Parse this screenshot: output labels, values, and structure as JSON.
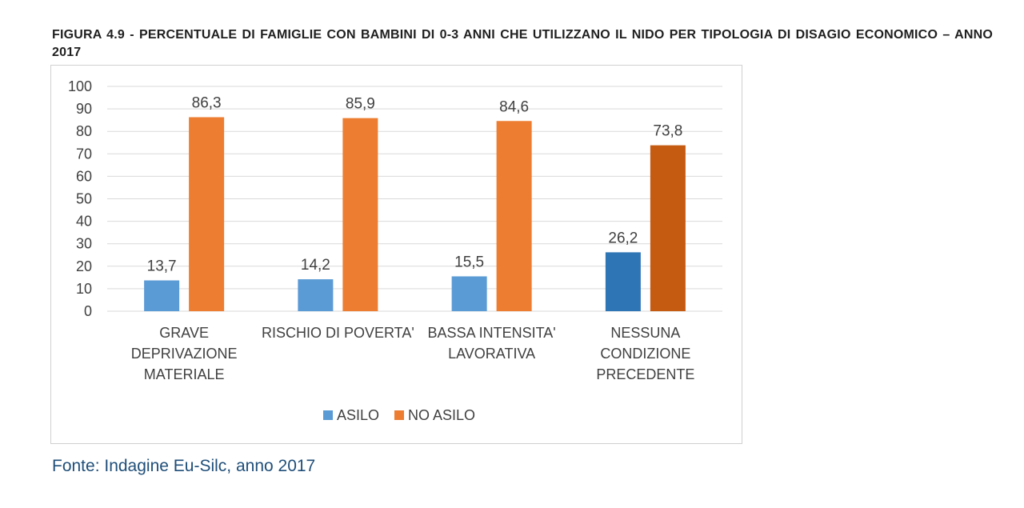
{
  "figure_title": "FIGURA 4.9 - PERCENTUALE DI FAMIGLIE CON BAMBINI DI 0-3 ANNI CHE UTILIZZANO IL NIDO PER TIPOLOGIA DI DISAGIO ECONOMICO – ANNO 2017",
  "source": "Fonte: Indagine Eu-Silc, anno 2017",
  "colors": {
    "asilo": "#5b9bd5",
    "asilo_highlight": "#2e75b6",
    "no_asilo": "#ed7d31",
    "no_asilo_highlight": "#c55a11",
    "grid": "#d9d9d9",
    "text": "#404040"
  },
  "chart_data": {
    "type": "bar",
    "title": "",
    "xlabel": "",
    "ylabel": "",
    "ylim": [
      0,
      100
    ],
    "yticks": [
      0,
      10,
      20,
      30,
      40,
      50,
      60,
      70,
      80,
      90,
      100
    ],
    "grid": true,
    "legend_position": "bottom",
    "categories": [
      [
        "GRAVE",
        "DEPRIVAZIONE",
        "MATERIALE"
      ],
      [
        "RISCHIO DI POVERTA'"
      ],
      [
        "BASSA INTENSITA'",
        "LAVORATIVA"
      ],
      [
        "NESSUNA",
        "CONDIZIONE",
        "PRECEDENTE"
      ]
    ],
    "series": [
      {
        "name": "ASILO",
        "values": [
          13.7,
          14.2,
          15.5,
          26.2
        ],
        "labels": [
          "13,7",
          "14,2",
          "15,5",
          "26,2"
        ]
      },
      {
        "name": "NO ASILO",
        "values": [
          86.3,
          85.9,
          84.6,
          73.8
        ],
        "labels": [
          "86,3",
          "85,9",
          "84,6",
          "73,8"
        ]
      }
    ],
    "highlighted_category_index": 3
  }
}
